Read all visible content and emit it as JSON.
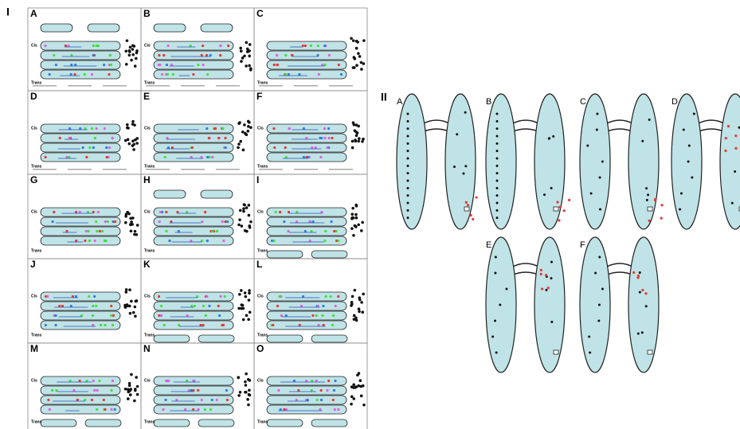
{
  "part_labels": [
    "I",
    "II"
  ],
  "part1": {
    "panels": [
      {
        "label": "A",
        "cis": "Cis",
        "trans": "Trans"
      },
      {
        "label": "B",
        "cis": "Cis",
        "trans": "Trans"
      },
      {
        "label": "C",
        "trans": "Trans"
      },
      {
        "label": "D",
        "cis": "Cis",
        "trans": "Trans"
      },
      {
        "label": "E",
        "cis": "Cis",
        "trans": "Trans"
      },
      {
        "label": "F",
        "cis": "Cis",
        "trans": "Trans"
      },
      {
        "label": "G",
        "cis": "Cis",
        "trans": "Trans"
      },
      {
        "label": "H",
        "cis": "Cis",
        "trans": "Trans"
      },
      {
        "label": "I",
        "cis": "Cis",
        "trans": "Trans"
      },
      {
        "label": "J",
        "cis": "Cis",
        "trans": "Trans"
      },
      {
        "label": "K",
        "cis": "Cis",
        "trans": "Trans"
      },
      {
        "label": "L",
        "cis": "Cis",
        "trans": "Trans"
      },
      {
        "label": "M",
        "cis": "Cis",
        "trans": "Trans"
      },
      {
        "label": "N",
        "cis": "Cis",
        "trans": "Trans"
      },
      {
        "label": "O",
        "cis": "Cis",
        "trans": "Trans"
      }
    ]
  },
  "part2": {
    "panels": [
      "A",
      "B",
      "C",
      "D",
      "E",
      "F"
    ]
  }
}
